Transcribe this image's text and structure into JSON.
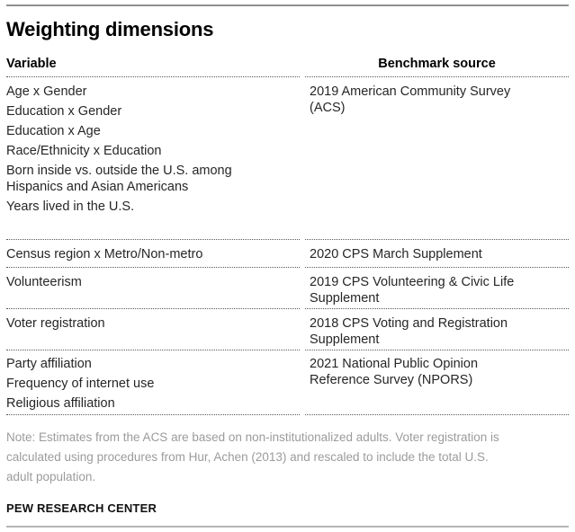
{
  "chart_data": {
    "type": "table",
    "title": "Weighting dimensions",
    "columns": [
      "Variable",
      "Benchmark source"
    ],
    "rows": [
      {
        "variable_lines": [
          "Age x Gender",
          "Education x Gender",
          "Education x Age",
          "Race/Ethnicity x Education",
          "Born inside vs. outside the U.S. among Hispanics and Asian Americans",
          "Years lived in the U.S."
        ],
        "benchmark": "2019 American Community Survey (ACS)"
      },
      {
        "variable_lines": [
          "Census region x Metro/Non-metro"
        ],
        "benchmark": "2020 CPS March Supplement"
      },
      {
        "variable_lines": [
          "Volunteerism"
        ],
        "benchmark": "2019 CPS Volunteering & Civic Life Supplement"
      },
      {
        "variable_lines": [
          "Voter registration"
        ],
        "benchmark": "2018 CPS Voting and Registration Supplement"
      },
      {
        "variable_lines": [
          "Party affiliation",
          "Frequency of internet use",
          "Religious affiliation"
        ],
        "benchmark": "2021 National Public Opinion Reference Survey (NPORS)"
      }
    ],
    "note": "Note: Estimates from the ACS are based on non-institutionalized adults. Voter registration is calculated using procedures from Hur, Achen (2013) and rescaled to include the total U.S. adult population.",
    "branding": "PEW RESEARCH CENTER",
    "legend_position": "none",
    "grid": "dotted row separators"
  },
  "colors": {
    "background": "#ffffff",
    "title_text": "#000000",
    "body_text": "#262626",
    "note_text": "#9b9b9b",
    "top_rule": "#8f8f8f",
    "bottom_rule": "#b6b6b6",
    "dotted_separator": "#595959"
  }
}
